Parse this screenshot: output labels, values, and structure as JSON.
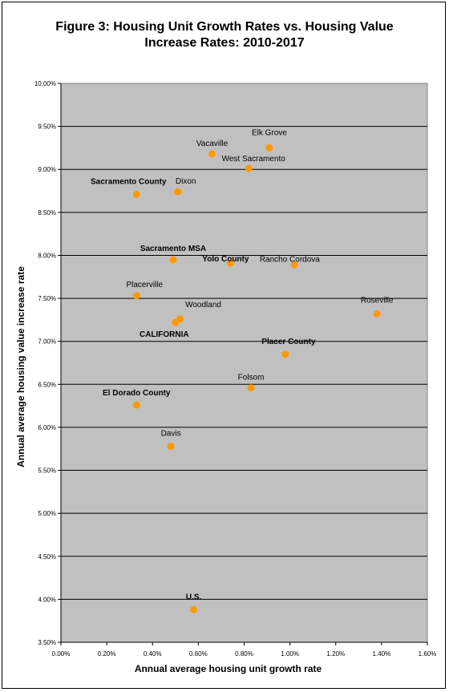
{
  "chart_data": {
    "type": "scatter",
    "title_lines": [
      "Figure 3: Housing Unit Growth Rates vs. Housing Value",
      "Increase Rates: 2010-2017"
    ],
    "xlabel": "Annual average housing unit growth rate",
    "ylabel": "Annual average housing value increase rate",
    "xlim": [
      0.0,
      1.6
    ],
    "ylim": [
      3.5,
      10.0
    ],
    "x_ticks": [
      "0.00%",
      "0.20%",
      "0.40%",
      "0.60%",
      "0.80%",
      "1.00%",
      "1.20%",
      "1.40%",
      "1.60%"
    ],
    "y_ticks": [
      "3.50%",
      "4.00%",
      "4.50%",
      "5.00%",
      "5.50%",
      "6.00%",
      "6.50%",
      "7.00%",
      "7.50%",
      "8.00%",
      "8.50%",
      "9.00%",
      "9.50%",
      "10.00%"
    ],
    "grid": "horizontal",
    "plot_background": "#C0C0C0",
    "marker_color": "#FF9900",
    "points": [
      {
        "label": "Vacaville",
        "x": 0.66,
        "y": 9.18,
        "bold": false
      },
      {
        "label": "Elk Grove",
        "x": 0.91,
        "y": 9.25,
        "bold": false
      },
      {
        "label": "West Sacramento",
        "x": 0.82,
        "y": 9.01,
        "bold": false
      },
      {
        "label": "Sacramento County",
        "x": 0.33,
        "y": 8.71,
        "bold": true
      },
      {
        "label": "Dixon",
        "x": 0.51,
        "y": 8.74,
        "bold": false
      },
      {
        "label": "Sacramento MSA",
        "x": 0.49,
        "y": 7.95,
        "bold": true
      },
      {
        "label": "Yolo County",
        "x": 0.74,
        "y": 7.91,
        "bold": true
      },
      {
        "label": "Rancho Cordova",
        "x": 1.02,
        "y": 7.89,
        "bold": false
      },
      {
        "label": "Placerville",
        "x": 0.33,
        "y": 7.53,
        "bold": false
      },
      {
        "label": "Woodland",
        "x": 0.52,
        "y": 7.26,
        "bold": false
      },
      {
        "label": "CALIFORNIA",
        "x": 0.5,
        "y": 7.22,
        "bold": true
      },
      {
        "label": "Roseville",
        "x": 1.38,
        "y": 7.32,
        "bold": false
      },
      {
        "label": "Placer County",
        "x": 0.98,
        "y": 6.85,
        "bold": true
      },
      {
        "label": "Folsom",
        "x": 0.83,
        "y": 6.46,
        "bold": false
      },
      {
        "label": "El Dorado County",
        "x": 0.33,
        "y": 6.26,
        "bold": true
      },
      {
        "label": "Davis",
        "x": 0.48,
        "y": 5.78,
        "bold": false
      },
      {
        "label": "U.S.",
        "x": 0.58,
        "y": 3.88,
        "bold": true
      }
    ]
  }
}
